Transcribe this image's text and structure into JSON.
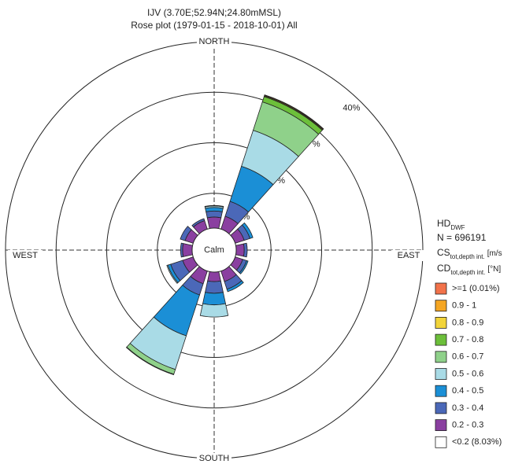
{
  "chart_data": {
    "type": "rose",
    "title": "IJV (3.70E;52.94N;24.80mMSL)",
    "subtitle": "Rose plot  (1979-01-15 - 2018-10-01) All",
    "compass": {
      "north": "NORTH",
      "east": "EAST",
      "south": "SOUTH",
      "west": "WEST"
    },
    "x": [
      0,
      30,
      60,
      90,
      120,
      150,
      180,
      210,
      240,
      270,
      300,
      330
    ],
    "rlim": [
      0,
      40
    ],
    "rticks": [
      {
        "value": 10,
        "label": "%"
      },
      {
        "value": 20,
        "label": "%"
      },
      {
        "value": 30,
        "label": "%"
      },
      {
        "value": 40,
        "label": "40%"
      }
    ],
    "calm": {
      "label": "Calm",
      "name": "<0.2 (8.03%)",
      "value": 8.03,
      "color": "#ffffff"
    },
    "legend_header": [
      {
        "text": "HD",
        "sub": "DWF"
      },
      {
        "text": "N = 696191"
      },
      {
        "text": "CS",
        "sub": "tot,depth int.",
        "unit": "[m/s"
      },
      {
        "text": "CD",
        "sub": "tot,depth int.",
        "unit": "[°N]"
      }
    ],
    "series": [
      {
        "name": "0.2 - 0.3",
        "color": "#8a3fa0",
        "values": [
          5.3,
          5.8,
          5.0,
          4.7,
          4.7,
          5.3,
          5.0,
          5.75,
          5.3,
          5.0,
          4.8,
          4.9
        ]
      },
      {
        "name": "0.3 - 0.4",
        "color": "#4b68b8",
        "values": [
          1.2,
          3.1,
          1.2,
          0.6,
          0.8,
          1.6,
          2.3,
          2.35,
          2.5,
          0.4,
          1.0,
          0.4
        ]
      },
      {
        "name": "0.4 - 0.5",
        "color": "#1b8fd6",
        "values": [
          0.7,
          7.3,
          0.6,
          0,
          0.3,
          0.5,
          2.3,
          8.5,
          0.6,
          0,
          0,
          0
        ]
      },
      {
        "name": "0.5 - 0.6",
        "color": "#a9dbe6",
        "values": [
          0.3,
          7.5,
          0,
          0,
          0,
          0,
          2.4,
          7.0,
          0.2,
          0,
          0,
          0
        ]
      },
      {
        "name": "0.6 - 0.7",
        "color": "#8fd18a",
        "values": [
          0.1,
          5.9,
          0,
          0,
          0,
          0,
          0,
          1.0,
          0,
          0,
          0,
          0
        ]
      },
      {
        "name": "0.7 - 0.8",
        "color": "#6cbf3a",
        "values": [
          0,
          1.1,
          0,
          0,
          0,
          0,
          0,
          0.1,
          0,
          0,
          0,
          0
        ]
      },
      {
        "name": "0.8 - 0.9",
        "color": "#f2d43a",
        "values": [
          0,
          0.15,
          0,
          0,
          0,
          0,
          0,
          0,
          0,
          0,
          0,
          0
        ]
      },
      {
        "name": "0.9 - 1",
        "color": "#f5a623",
        "values": [
          0,
          0.15,
          0,
          0,
          0,
          0,
          0,
          0,
          0,
          0,
          0,
          0
        ]
      },
      {
        "name": ">=1 (0.01%)",
        "color": "#f2724a",
        "values": [
          0,
          0.05,
          0,
          0,
          0,
          0,
          0,
          0,
          0,
          0,
          0,
          0
        ]
      }
    ]
  }
}
